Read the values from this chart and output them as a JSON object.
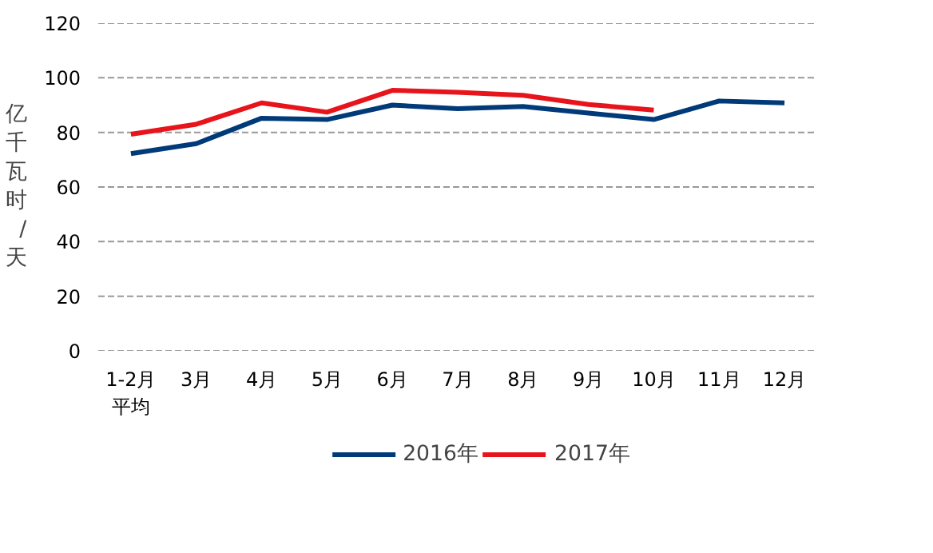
{
  "chart_data": {
    "type": "line",
    "ylabel": "亿千瓦时/天",
    "categories": [
      "1-2月平均",
      "3月",
      "4月",
      "5月",
      "6月",
      "7月",
      "8月",
      "9月",
      "10月",
      "11月",
      "12月"
    ],
    "series": [
      {
        "name": "2016年",
        "color": "#003a78",
        "values": [
          72.2,
          75.9,
          85.2,
          84.7,
          90.0,
          88.7,
          89.5,
          87.1,
          84.7,
          91.5,
          90.8
        ]
      },
      {
        "name": "2017年",
        "color": "#e8141c",
        "values": [
          79.3,
          83.0,
          90.8,
          87.4,
          95.4,
          94.7,
          93.6,
          90.2,
          88.2,
          null,
          null
        ]
      }
    ],
    "ylim": [
      0,
      120
    ],
    "yticks": [
      0,
      20,
      40,
      60,
      80,
      100,
      120
    ],
    "grid": "y",
    "legend": "bottom",
    "line_style": "solid",
    "marker": "none"
  }
}
